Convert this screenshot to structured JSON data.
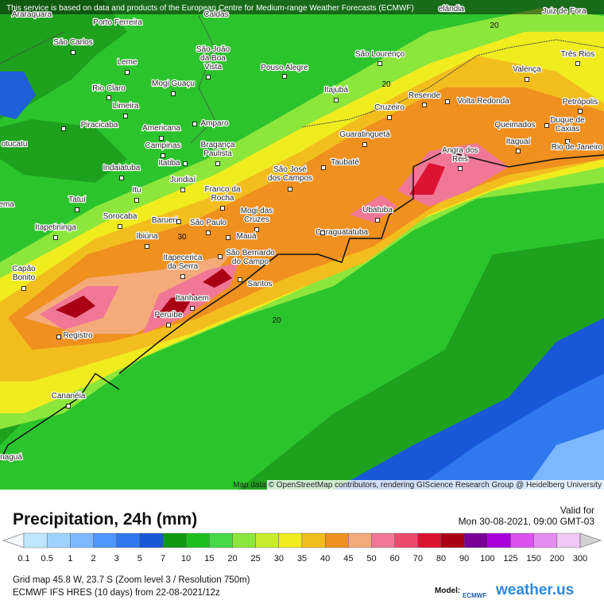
{
  "banner": "This service is based on data and products of the European Centre for Medium-range Weather Forecasts (ECMWF)",
  "attribution": "Map data © OpenStreetMap contributors, rendering GIScience Research Group @ Heidelberg University",
  "cities": [
    {
      "name": [
        "Araraquara"
      ]
    },
    {
      "name": [
        "Porto Ferreira"
      ]
    },
    {
      "name": [
        "Caldas"
      ]
    },
    {
      "name": [
        "São João",
        "da Boa",
        "Vista"
      ]
    },
    {
      "name": [
        "Pouso Alegre"
      ]
    },
    {
      "name": [
        "São Lourenço"
      ]
    },
    {
      "name": [
        "elândia"
      ]
    },
    {
      "name": [
        "Juiz de Fora"
      ]
    },
    {
      "name": [
        "Três Rios"
      ]
    },
    {
      "name": [
        "Valença"
      ]
    },
    {
      "name": [
        "São Carlos"
      ]
    },
    {
      "name": [
        "Leme"
      ]
    },
    {
      "name": [
        "Rio Claro"
      ]
    },
    {
      "name": [
        "Mogi Guaçu"
      ]
    },
    {
      "name": [
        "Itajubá"
      ]
    },
    {
      "name": [
        "Resende"
      ]
    },
    {
      "name": [
        "Volta Redonda"
      ]
    },
    {
      "name": [
        "Cruzeiro"
      ]
    },
    {
      "name": [
        "Petrópolis"
      ]
    },
    {
      "name": [
        "Limeira"
      ]
    },
    {
      "name": [
        "Piracicaba"
      ]
    },
    {
      "name": [
        "Americana"
      ]
    },
    {
      "name": [
        "Amparo"
      ]
    },
    {
      "name": [
        "Queimados"
      ]
    },
    {
      "name": [
        "Duque de",
        "Caxias"
      ]
    },
    {
      "name": [
        "Campinas"
      ]
    },
    {
      "name": [
        "Bragança",
        "Paulista"
      ]
    },
    {
      "name": [
        "Guaratinguetá"
      ]
    },
    {
      "name": [
        "Itaguaí"
      ]
    },
    {
      "name": [
        "Rio de Janeiro"
      ]
    },
    {
      "name": [
        "Angra dos",
        "Reis"
      ]
    },
    {
      "name": [
        "otucatu"
      ]
    },
    {
      "name": [
        "Indaiatuba"
      ]
    },
    {
      "name": [
        "Itatiba"
      ]
    },
    {
      "name": [
        "Taubaté"
      ]
    },
    {
      "name": [
        "São José",
        "dos Campos"
      ]
    },
    {
      "name": [
        "Jundiaí"
      ]
    },
    {
      "name": [
        "Itu"
      ]
    },
    {
      "name": [
        "Franco da",
        "Rocha"
      ]
    },
    {
      "name": [
        "ema"
      ]
    },
    {
      "name": [
        "Tatuí"
      ]
    },
    {
      "name": [
        "Mogi das",
        "Cruzes"
      ]
    },
    {
      "name": [
        "Ubatuba"
      ]
    },
    {
      "name": [
        "Sorocaba"
      ]
    },
    {
      "name": [
        "Barueri"
      ]
    },
    {
      "name": [
        "São Paulo"
      ]
    },
    {
      "name": [
        "Itapetininga"
      ]
    },
    {
      "name": [
        "Ibiúna"
      ]
    },
    {
      "name": [
        "Caraguatatuba"
      ]
    },
    {
      "name": [
        "Mauá"
      ]
    },
    {
      "name": [
        "Itapecerica",
        "da Serra"
      ]
    },
    {
      "name": [
        "São Bernardo",
        "do Campo"
      ]
    },
    {
      "name": [
        "Capão",
        "Bonito"
      ]
    },
    {
      "name": [
        "Santos"
      ]
    },
    {
      "name": [
        "Itanhaem"
      ]
    },
    {
      "name": [
        "Peruíbe"
      ]
    },
    {
      "name": [
        "Registro"
      ]
    },
    {
      "name": [
        "Cananéia"
      ]
    },
    {
      "name": [
        "naguá"
      ]
    }
  ],
  "contour_labels": [
    20,
    20,
    20,
    30
  ],
  "legend": {
    "title": "Precipitation, 24h (mm)",
    "valid_label": "Valid for",
    "valid_time": "Mon 30-08-2021, 09:00 GMT-03",
    "values": [
      0.1,
      0.5,
      1,
      2,
      3,
      5,
      7,
      10,
      15,
      20,
      25,
      30,
      35,
      40,
      45,
      50,
      60,
      70,
      80,
      90,
      100,
      125,
      150,
      200,
      300
    ],
    "colors": [
      "#bfe6ff",
      "#a0d2ff",
      "#7cb8ff",
      "#5096ff",
      "#2f78ee",
      "#1858d8",
      "#0f9a0f",
      "#1ebe1e",
      "#46d846",
      "#8ce63c",
      "#c8ec2d",
      "#f0ec1e",
      "#f2be1e",
      "#f0901e",
      "#f5aa7a",
      "#f07896",
      "#ec4b6e",
      "#dc1432",
      "#aa0014",
      "#780096",
      "#a800dc",
      "#dc50f0",
      "#e68cf0",
      "#f0c8f5",
      "#d2d2d2"
    ]
  },
  "footer": {
    "grid": "Grid map 45.8 W, 23.7 S (Zoom level 3 / Resolution 750m)",
    "model_run": "ECMWF IFS HRES (10 days) from 22-08-2021/12z",
    "model_label": "Model:",
    "model_logo": "ECMWF",
    "brand": "weather.us"
  }
}
